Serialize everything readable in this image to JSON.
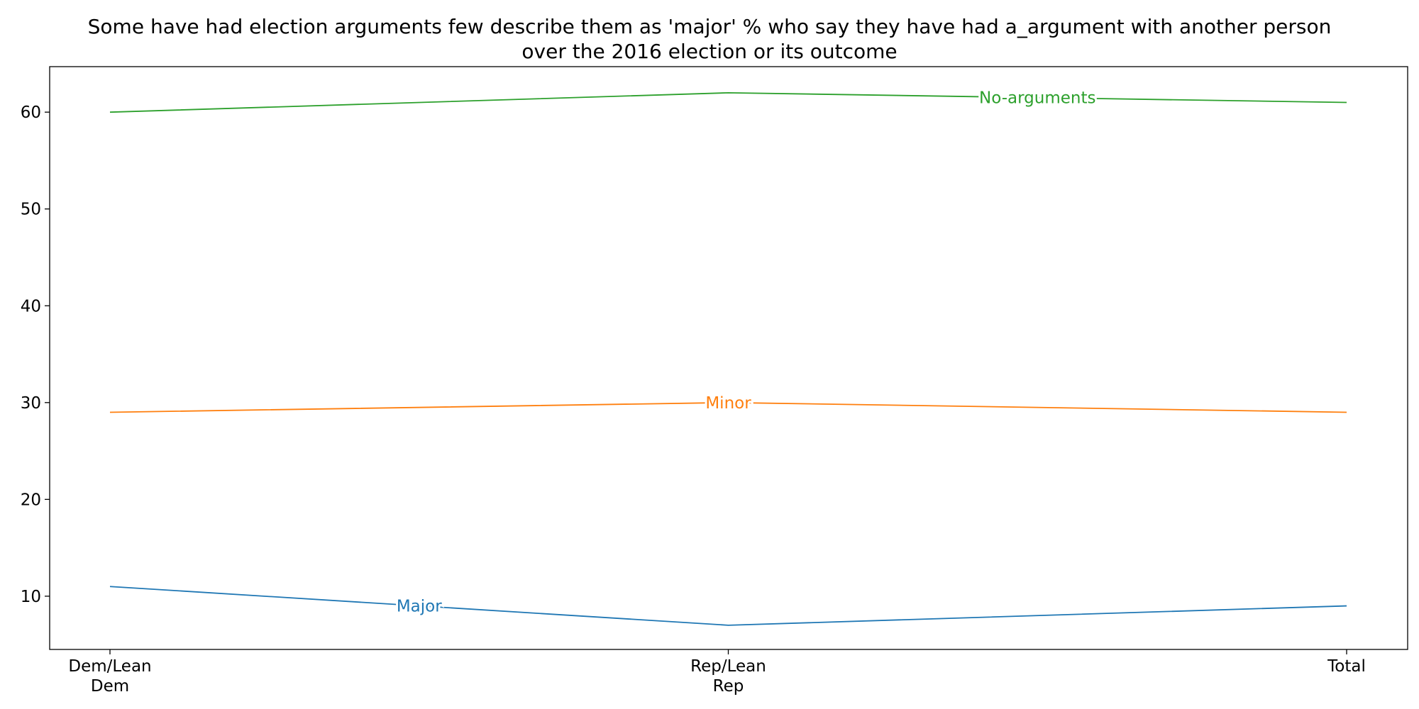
{
  "chart_data": {
    "type": "line",
    "title_lines": [
      "Some have had election arguments few describe them as 'major' % who say they have had a_argument with another person",
      "over the 2016 election or its outcome"
    ],
    "xlabel": "",
    "ylabel": "",
    "categories": [
      [
        "Dem/Lean",
        "Dem"
      ],
      [
        "Rep/Lean",
        "Rep"
      ],
      [
        "Total"
      ]
    ],
    "ylim": [
      4.5,
      64.7
    ],
    "yticks": [
      10,
      20,
      30,
      40,
      50,
      60
    ],
    "grid": false,
    "legend": "none",
    "series": [
      {
        "name": "Major",
        "values": [
          11,
          7,
          9
        ],
        "color": "#1f77b4",
        "label_at": 0.5
      },
      {
        "name": "Minor",
        "values": [
          29,
          30,
          29
        ],
        "color": "#ff7f0e",
        "label_at": 1.0
      },
      {
        "name": "No-arguments",
        "values": [
          60,
          62,
          61
        ],
        "color": "#2ca02c",
        "label_at": 1.5
      }
    ]
  }
}
